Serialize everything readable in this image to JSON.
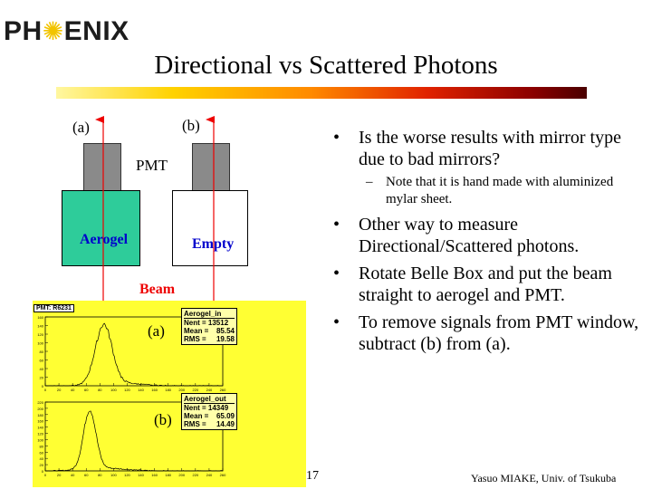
{
  "logo": {
    "left": "PH",
    "right": "ENIX"
  },
  "title": "Directional vs Scattered Photons",
  "diagram": {
    "label_a": "(a)",
    "label_b": "(b)",
    "pmt_label": "PMT",
    "aerogel_label": "Aerogel",
    "empty_label": "Empty",
    "beam_label": "Beam",
    "colors": {
      "aerogel_fill": "#2ecc9a",
      "pmt_fill": "#8a8a8a",
      "arrow": "#ee0000",
      "label_blue": "#0000cc"
    }
  },
  "plot": {
    "panel_title": "PMT: R6231",
    "panel_color": "#ffff33",
    "top": {
      "label": "(a)",
      "stats": {
        "name": "Aerogel_in",
        "entries_label": "Nent = 13512",
        "mean_label": "Mean  =",
        "mean": "85.54",
        "rms_label": "RMS   =",
        "rms": "19.58"
      },
      "y_ticks": [
        "160",
        "140",
        "120",
        "100",
        "80",
        "60",
        "40",
        "20",
        "0"
      ],
      "x_ticks": [
        "0",
        "20",
        "40",
        "60",
        "80",
        "100",
        "120",
        "140",
        "160",
        "180",
        "200",
        "220",
        "240",
        "260"
      ]
    },
    "bottom": {
      "label": "(b)",
      "stats": {
        "name": "Aerogel_out",
        "entries_label": "Nent = 14349",
        "mean_label": "Mean  =",
        "mean": "65.09",
        "rms_label": "RMS   =",
        "rms": "14.49"
      },
      "y_ticks": [
        "220",
        "200",
        "180",
        "160",
        "140",
        "120",
        "100",
        "80",
        "60",
        "40",
        "20",
        "0"
      ],
      "x_ticks": [
        "0",
        "20",
        "40",
        "60",
        "80",
        "100",
        "120",
        "140",
        "160",
        "180",
        "200",
        "220",
        "240",
        "260"
      ]
    }
  },
  "bullets": [
    {
      "text": "Is the worse results with mirror type due to bad mirrors?",
      "sub": "Note that it is hand made with aluminized mylar sheet."
    },
    {
      "text": "Other way to measure Directional/Scattered photons."
    },
    {
      "text": "Rotate Belle Box and put the beam straight to aerogel and PMT."
    },
    {
      "text": "To remove signals from PMT window, subtract (b) from (a)."
    }
  ],
  "bullet_char": "•",
  "dash_char": "–",
  "page_number": "17",
  "footer": "Yasuo MIAKE, Univ. of Tsukuba"
}
